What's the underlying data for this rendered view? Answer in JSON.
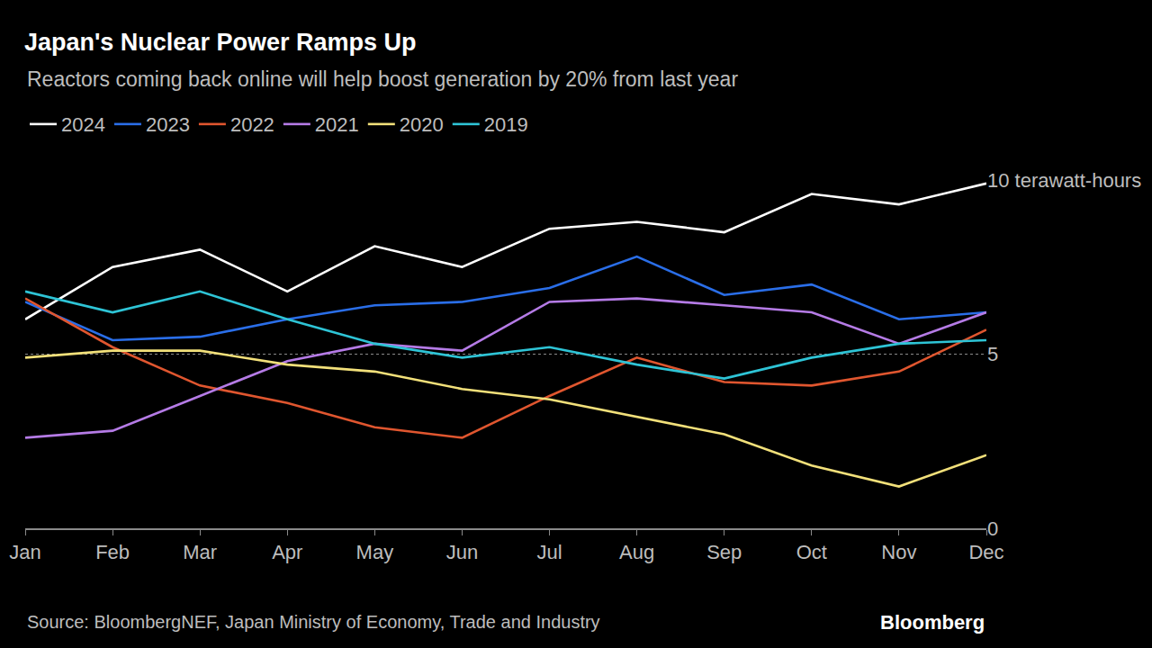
{
  "chart_data": {
    "type": "line",
    "title": "Japan's Nuclear Power Ramps Up",
    "subtitle": "Reactors coming back online will help boost generation by 20% from last year",
    "source": "Source: BloombergNEF, Japan Ministry of Economy, Trade and Industry",
    "credit": "Bloomberg",
    "categories": [
      "Jan",
      "Feb",
      "Mar",
      "Apr",
      "May",
      "Jun",
      "Jul",
      "Aug",
      "Sep",
      "Oct",
      "Nov",
      "Dec"
    ],
    "series": [
      {
        "name": "2024",
        "color": "#ffffff",
        "values": [
          6.0,
          7.5,
          8.0,
          6.8,
          8.1,
          7.5,
          8.6,
          8.8,
          8.5,
          9.6,
          9.3,
          9.9
        ]
      },
      {
        "name": "2023",
        "color": "#2a6ee8",
        "values": [
          6.5,
          5.4,
          5.5,
          6.0,
          6.4,
          6.5,
          6.9,
          7.8,
          6.7,
          7.0,
          6.0,
          6.2
        ]
      },
      {
        "name": "2022",
        "color": "#e0562f",
        "values": [
          6.6,
          5.2,
          4.1,
          3.6,
          2.9,
          2.6,
          3.8,
          4.9,
          4.2,
          4.1,
          4.5,
          5.7
        ]
      },
      {
        "name": "2021",
        "color": "#b57be6",
        "values": [
          2.6,
          2.8,
          3.8,
          4.8,
          5.3,
          5.1,
          6.5,
          6.6,
          6.4,
          6.2,
          5.3,
          6.2
        ]
      },
      {
        "name": "2020",
        "color": "#f2e07a",
        "values": [
          4.9,
          5.1,
          5.1,
          4.7,
          4.5,
          4.0,
          3.7,
          3.2,
          2.7,
          1.8,
          1.2,
          2.1
        ]
      },
      {
        "name": "2019",
        "color": "#2ec4d6",
        "values": [
          6.8,
          6.2,
          6.8,
          6.0,
          5.3,
          4.9,
          5.2,
          4.7,
          4.3,
          4.9,
          5.3,
          5.4
        ]
      }
    ],
    "ylim": [
      0,
      10
    ],
    "yticks": [
      0,
      5,
      {
        "value": 10,
        "label": "10 terawatt-hours"
      }
    ],
    "grid": true,
    "legend": "top"
  }
}
